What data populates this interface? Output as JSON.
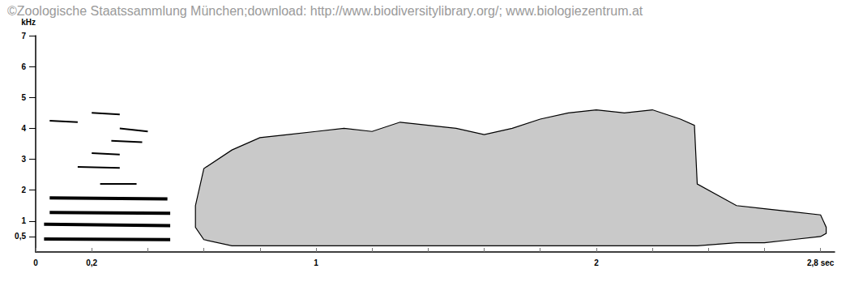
{
  "chart_data": {
    "type": "line",
    "title": "©Zoologische Staatssammlung München;download: http://www.biodiversitylibrary.org/; www.biologiezentrum.at",
    "y_label": "kHz",
    "xlim": [
      0,
      2.85
    ],
    "ylim": [
      0,
      7
    ],
    "xticks": [
      0,
      {
        "value": 0.2,
        "label": "0,2"
      },
      1,
      2,
      {
        "value": 2.8,
        "label": "2,8 sec"
      }
    ],
    "xminor_ticks": [
      0.4,
      0.6,
      0.8,
      1.2,
      1.4,
      1.6,
      1.8,
      2.2,
      2.4,
      2.6
    ],
    "yticks": [
      {
        "value": 0.5,
        "label": "0,5"
      },
      1,
      2,
      3,
      4,
      5,
      6,
      7
    ],
    "grid": false,
    "color": "#000000",
    "series": [
      {
        "type": "line",
        "line_style": "thick",
        "x": [
          0.03,
          0.48
        ],
        "values": [
          0.42,
          0.4
        ]
      },
      {
        "type": "line",
        "line_style": "thick",
        "x": [
          0.03,
          0.48
        ],
        "values": [
          0.9,
          0.85
        ]
      },
      {
        "type": "line",
        "line_style": "thick",
        "x": [
          0.05,
          0.48
        ],
        "values": [
          1.28,
          1.25
        ]
      },
      {
        "type": "line",
        "line_style": "thick",
        "x": [
          0.05,
          0.47
        ],
        "values": [
          1.75,
          1.72
        ]
      },
      {
        "type": "line",
        "line_style": "thin",
        "x": [
          0.23,
          0.36
        ],
        "values": [
          2.2,
          2.2
        ]
      },
      {
        "type": "line",
        "line_style": "thin",
        "x": [
          0.15,
          0.3
        ],
        "values": [
          2.75,
          2.72
        ]
      },
      {
        "type": "line",
        "line_style": "thin",
        "x": [
          0.2,
          0.3
        ],
        "values": [
          3.2,
          3.15
        ]
      },
      {
        "type": "line",
        "line_style": "thin",
        "x": [
          0.27,
          0.38
        ],
        "values": [
          3.6,
          3.55
        ]
      },
      {
        "type": "line",
        "line_style": "thin",
        "x": [
          0.3,
          0.4
        ],
        "values": [
          4.0,
          3.9
        ]
      },
      {
        "type": "line",
        "line_style": "thin",
        "x": [
          0.05,
          0.15
        ],
        "values": [
          4.25,
          4.2
        ]
      },
      {
        "type": "line",
        "line_style": "thin",
        "x": [
          0.2,
          0.3
        ],
        "values": [
          4.5,
          4.45
        ]
      },
      {
        "type": "area",
        "x": [
          0.57,
          0.6,
          0.7,
          0.8,
          0.9,
          1.0,
          1.1,
          1.2,
          1.3,
          1.4,
          1.5,
          1.6,
          1.7,
          1.8,
          1.9,
          2.0,
          2.1,
          2.2,
          2.3,
          2.35,
          2.36,
          2.5,
          2.6,
          2.7,
          2.8,
          2.82
        ],
        "values": [
          1.5,
          2.7,
          3.3,
          3.7,
          3.8,
          3.9,
          4.0,
          3.9,
          4.2,
          4.1,
          4.0,
          3.8,
          4.0,
          4.3,
          4.5,
          4.6,
          4.5,
          4.6,
          4.3,
          4.1,
          2.2,
          1.5,
          1.4,
          1.3,
          1.2,
          0.8
        ],
        "lower": [
          0.8,
          0.4,
          0.2,
          0.2,
          0.2,
          0.2,
          0.2,
          0.2,
          0.2,
          0.2,
          0.2,
          0.2,
          0.2,
          0.2,
          0.2,
          0.2,
          0.2,
          0.2,
          0.2,
          0.2,
          0.2,
          0.3,
          0.3,
          0.4,
          0.5,
          0.6
        ]
      }
    ]
  }
}
